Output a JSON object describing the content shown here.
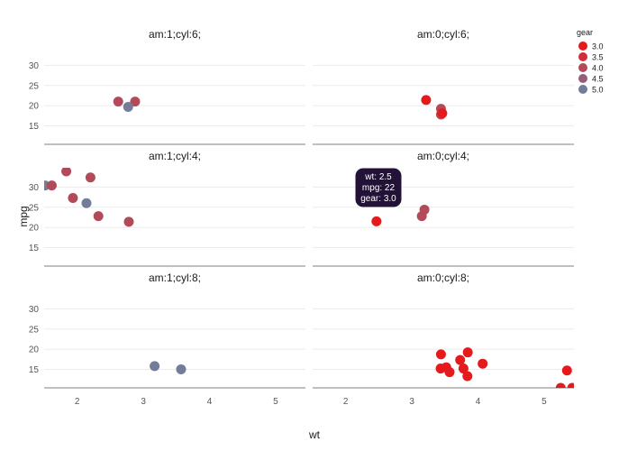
{
  "chart_data": {
    "type": "scatter",
    "xlabel": "wt",
    "ylabel": "mpg",
    "xlim": [
      1.5,
      5.45
    ],
    "ylim": [
      10.4,
      33.9
    ],
    "xticks": [
      2,
      3,
      4,
      5
    ],
    "yticks": [
      15,
      20,
      25,
      30
    ],
    "legend": {
      "title": "gear",
      "position": "top-right",
      "entries": [
        {
          "label": "3.0",
          "color": "#e41a1c"
        },
        {
          "label": "3.5",
          "color": "#cf2f3b"
        },
        {
          "label": "4.0",
          "color": "#b24a5a"
        },
        {
          "label": "4.5",
          "color": "#965c78"
        },
        {
          "label": "5.0",
          "color": "#737c99"
        }
      ]
    },
    "panels": [
      {
        "label": "am:1;cyl:6;",
        "points": [
          {
            "wt": 2.62,
            "mpg": 21.0,
            "gear": 4
          },
          {
            "wt": 2.875,
            "mpg": 21.0,
            "gear": 4
          },
          {
            "wt": 2.77,
            "mpg": 19.7,
            "gear": 5
          }
        ]
      },
      {
        "label": "am:0;cyl:6;",
        "points": [
          {
            "wt": 3.215,
            "mpg": 21.4,
            "gear": 3
          },
          {
            "wt": 3.44,
            "mpg": 19.2,
            "gear": 4
          },
          {
            "wt": 3.44,
            "mpg": 17.8,
            "gear": 4
          },
          {
            "wt": 3.46,
            "mpg": 18.1,
            "gear": 3
          }
        ]
      },
      {
        "label": "am:1;cyl:4;",
        "points": [
          {
            "wt": 1.513,
            "mpg": 30.4,
            "gear": 5
          },
          {
            "wt": 1.615,
            "mpg": 30.4,
            "gear": 4
          },
          {
            "wt": 1.835,
            "mpg": 33.9,
            "gear": 4
          },
          {
            "wt": 2.2,
            "mpg": 32.4,
            "gear": 4
          },
          {
            "wt": 1.935,
            "mpg": 27.3,
            "gear": 4
          },
          {
            "wt": 2.14,
            "mpg": 26.0,
            "gear": 5
          },
          {
            "wt": 2.32,
            "mpg": 22.8,
            "gear": 4
          },
          {
            "wt": 2.78,
            "mpg": 21.4,
            "gear": 4
          }
        ]
      },
      {
        "label": "am:0;cyl:4;",
        "points": [
          {
            "wt": 2.465,
            "mpg": 21.5,
            "gear": 3
          },
          {
            "wt": 3.15,
            "mpg": 22.8,
            "gear": 4
          },
          {
            "wt": 3.19,
            "mpg": 24.4,
            "gear": 4
          }
        ]
      },
      {
        "label": "am:1;cyl:8;",
        "points": [
          {
            "wt": 3.17,
            "mpg": 15.8,
            "gear": 5
          },
          {
            "wt": 3.57,
            "mpg": 15.0,
            "gear": 5
          }
        ]
      },
      {
        "label": "am:0;cyl:8;",
        "points": [
          {
            "wt": 3.44,
            "mpg": 18.7,
            "gear": 3
          },
          {
            "wt": 3.57,
            "mpg": 14.3,
            "gear": 3
          },
          {
            "wt": 4.07,
            "mpg": 16.4,
            "gear": 3
          },
          {
            "wt": 3.73,
            "mpg": 17.3,
            "gear": 3
          },
          {
            "wt": 3.78,
            "mpg": 15.2,
            "gear": 3
          },
          {
            "wt": 5.25,
            "mpg": 10.4,
            "gear": 3
          },
          {
            "wt": 5.424,
            "mpg": 10.4,
            "gear": 3
          },
          {
            "wt": 5.345,
            "mpg": 14.7,
            "gear": 3
          },
          {
            "wt": 3.52,
            "mpg": 15.5,
            "gear": 3
          },
          {
            "wt": 3.435,
            "mpg": 15.2,
            "gear": 3
          },
          {
            "wt": 3.84,
            "mpg": 13.3,
            "gear": 3
          },
          {
            "wt": 3.845,
            "mpg": 19.2,
            "gear": 3
          }
        ]
      }
    ],
    "tooltip": {
      "lines": [
        "wt: 2.5",
        "mpg: 22",
        "gear: 3.0"
      ]
    }
  }
}
